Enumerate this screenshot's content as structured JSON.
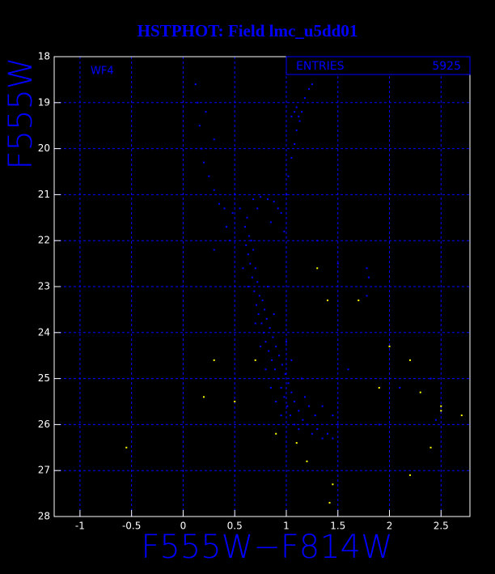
{
  "chart_data": {
    "type": "scatter",
    "title": "HSTPHOT: Field lmc_u5dd01",
    "x_label": "F555W−F814W",
    "y_label": "F555W",
    "annotation": "WF4",
    "stats": {
      "label": "ENTRIES",
      "value": "5925"
    },
    "xlim": [
      -1.25,
      2.78
    ],
    "ylim": [
      28,
      18
    ],
    "xticks": [
      -1,
      -0.5,
      0,
      0.5,
      1,
      1.5,
      2,
      2.5
    ],
    "yticks": [
      18,
      19,
      20,
      21,
      22,
      23,
      24,
      25,
      26,
      27,
      28
    ],
    "grid": true,
    "series": [
      {
        "color": "#0000ff",
        "x": [
          0.62,
          0.6,
          0.64,
          0.61,
          0.66,
          0.63,
          0.68,
          0.65,
          0.7,
          0.67,
          0.72,
          0.69,
          0.74,
          0.71,
          0.77,
          0.73,
          0.79,
          0.76,
          0.81,
          0.78,
          0.84,
          0.8,
          0.87,
          0.83,
          0.9,
          0.86,
          0.93,
          0.89,
          0.96,
          0.92,
          0.99,
          0.95,
          1.02,
          0.98,
          1.05,
          1.01,
          1.08,
          1.04,
          1.12,
          1.08,
          1.16,
          1.12,
          1.2,
          1.25,
          1.3,
          1.35,
          1.4,
          1.45,
          0.95,
          1.18,
          1.22,
          1.28,
          1.0,
          1.05,
          0.88,
          0.82,
          0.58,
          0.63,
          0.7,
          0.75,
          0.8,
          0.85,
          0.9,
          1.15,
          1.35,
          1.5,
          1.45,
          0.68,
          0.75,
          0.82,
          0.88,
          0.72,
          0.85,
          0.95,
          1.0,
          1.02,
          1.05,
          1.08,
          1.1,
          1.12,
          1.08,
          1.15,
          1.1,
          1.05,
          1.18,
          1.22,
          1.25,
          1.13,
          0.98,
          0.92,
          0.12,
          0.14,
          0.16,
          0.18,
          0.2,
          0.25,
          0.3,
          0.35,
          0.4,
          0.48,
          0.55,
          0.22,
          0.3,
          0.5,
          0.42,
          0.3,
          0.45,
          1.78,
          1.8,
          1.78,
          1.5,
          1.3,
          2.1,
          2.4,
          2.45,
          1.6,
          1.9
        ],
        "y": [
          21.5,
          21.7,
          21.9,
          22.1,
          22.0,
          22.3,
          22.2,
          22.5,
          22.6,
          22.8,
          22.9,
          23.1,
          23.2,
          23.4,
          23.3,
          23.6,
          23.5,
          23.8,
          23.7,
          24.0,
          23.9,
          24.2,
          24.1,
          24.4,
          24.3,
          24.6,
          24.5,
          24.8,
          24.7,
          25.0,
          24.9,
          25.2,
          25.1,
          25.4,
          25.3,
          25.6,
          25.5,
          25.8,
          25.7,
          26.0,
          25.9,
          26.1,
          26.0,
          26.2,
          26.1,
          26.3,
          26.2,
          26.3,
          25.8,
          25.4,
          25.6,
          25.8,
          24.2,
          24.6,
          23.6,
          23.0,
          22.6,
          23.0,
          23.8,
          24.3,
          24.8,
          25.2,
          25.5,
          25.0,
          25.6,
          26.0,
          25.8,
          21.1,
          21.05,
          21.1,
          21.15,
          21.3,
          21.6,
          21.4,
          21.0,
          20.6,
          20.2,
          19.9,
          19.6,
          19.3,
          19.2,
          19.2,
          19.1,
          19.3,
          18.9,
          18.7,
          18.6,
          19.4,
          21.8,
          21.3,
          18.6,
          19.0,
          19.5,
          20.0,
          20.3,
          20.6,
          20.9,
          21.2,
          21.3,
          21.4,
          21.3,
          19.2,
          19.8,
          21.0,
          21.7,
          22.2,
          22.0,
          22.6,
          22.8,
          23.2,
          22.5,
          22.0,
          25.2,
          25.0,
          25.9,
          24.8,
          26.0
        ]
      },
      {
        "color": "#ffff00",
        "x": [
          0.2,
          0.5,
          0.7,
          1.3,
          1.4,
          1.7,
          2.0,
          2.2,
          2.3,
          2.5,
          2.7,
          1.9,
          1.1,
          1.2,
          1.45,
          1.42,
          2.2,
          2.4,
          0.3,
          -0.55,
          0.9,
          2.5
        ],
        "y": [
          25.4,
          25.5,
          24.6,
          22.6,
          23.3,
          23.3,
          24.3,
          24.6,
          25.3,
          25.6,
          25.8,
          25.2,
          26.4,
          26.8,
          27.3,
          27.7,
          27.1,
          26.5,
          24.6,
          26.5,
          26.2,
          25.7
        ]
      }
    ]
  }
}
